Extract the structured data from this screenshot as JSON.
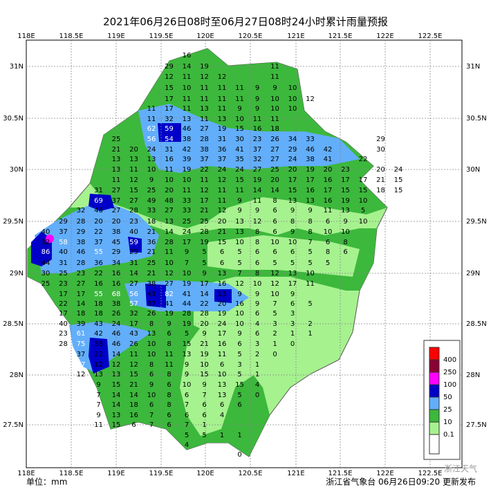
{
  "title": "2021年06月26日08时至06月27日08时24小时累计雨量预报",
  "lon_labels": [
    "118E",
    "118.5E",
    "119E",
    "119.5E",
    "120E",
    "120.5E",
    "121E",
    "121.5E",
    "122E",
    "122.5E"
  ],
  "lat_labels": [
    "31N",
    "30.5N",
    "30N",
    "29.5N",
    "29N",
    "28.5N",
    "28N",
    "27.5N"
  ],
  "legend": [
    "400",
    "250",
    "100",
    "50",
    "25",
    "10",
    "0.1"
  ],
  "unit": "单位：mm",
  "footer": "浙江省气象台 06月26日09:20 更新发布",
  "watermark": "浙江天气",
  "station_rows": [
    [
      16
    ],
    [
      29,
      14,
      19,
      null,
      null,
      null,
      11
    ],
    [
      12,
      11,
      12,
      12,
      null,
      null,
      11
    ],
    [
      15,
      10,
      11,
      11,
      11,
      9,
      9,
      10
    ],
    [
      17,
      11,
      11,
      11,
      11,
      9,
      10,
      10,
      12
    ],
    [
      11,
      17,
      11,
      13,
      11,
      9,
      9,
      10,
      10
    ],
    [
      11,
      32,
      13,
      11,
      13,
      10,
      11,
      11
    ],
    [
      62,
      59,
      46,
      27,
      19,
      15,
      16,
      18
    ],
    [
      25,
      null,
      56,
      54,
      38,
      28,
      31,
      30,
      23,
      26,
      34,
      33,
      null,
      null,
      null,
      29
    ],
    [
      21,
      20,
      24,
      31,
      42,
      38,
      36,
      41,
      37,
      27,
      29,
      46,
      42,
      null,
      null,
      30
    ],
    [
      13,
      13,
      13,
      16,
      39,
      37,
      37,
      35,
      32,
      27,
      24,
      38,
      41,
      null,
      22
    ],
    [
      13,
      11,
      10,
      11,
      19,
      22,
      24,
      24,
      27,
      25,
      20,
      19,
      20,
      23,
      null,
      20,
      24
    ],
    [
      11,
      12,
      9,
      10,
      10,
      11,
      12,
      15,
      19,
      20,
      17,
      17,
      16,
      17,
      17,
      21,
      15
    ],
    [
      31,
      27,
      15,
      25,
      20,
      11,
      12,
      11,
      11,
      14,
      14,
      15,
      16,
      17,
      15,
      15,
      18,
      15
    ],
    [
      69,
      37,
      27,
      49,
      48,
      33,
      17,
      11,
      9,
      11,
      8,
      13,
      13,
      16,
      19,
      10
    ],
    [
      32,
      46,
      27,
      28,
      33,
      27,
      33,
      21,
      12,
      9,
      9,
      6,
      9,
      9,
      11,
      13,
      5
    ],
    [
      29,
      28,
      20,
      20,
      23,
      18,
      13,
      25,
      25,
      20,
      13,
      12,
      6,
      8,
      8,
      6,
      9,
      10
    ],
    [
      40,
      37,
      29,
      22,
      38,
      40,
      21,
      14,
      24,
      28,
      21,
      13,
      8,
      6,
      9,
      8,
      10,
      10
    ],
    [
      32,
      58,
      38,
      37,
      45,
      59,
      36,
      28,
      17,
      19,
      15,
      10,
      8,
      10,
      10,
      7,
      6,
      8
    ],
    [
      86,
      40,
      46,
      55,
      29,
      25,
      21,
      11,
      9,
      5,
      6,
      5,
      6,
      6,
      6,
      5,
      8,
      6
    ],
    [
      44,
      31,
      28,
      36,
      34,
      31,
      25,
      10,
      7,
      5,
      6,
      5,
      6,
      5,
      5,
      5,
      5
    ],
    [
      30,
      25,
      23,
      22,
      16,
      14,
      21,
      12,
      10,
      9,
      13,
      7,
      8,
      12,
      13,
      10
    ],
    [
      25,
      23,
      27,
      16,
      16,
      27,
      38,
      27,
      19,
      17,
      16,
      12,
      10,
      12,
      17,
      11
    ],
    [
      17,
      17,
      55,
      68,
      56,
      43,
      82,
      41,
      14,
      13,
      9,
      9,
      10,
      9
    ],
    [
      22,
      14,
      18,
      38,
      57,
      37,
      41,
      44,
      22,
      20,
      16,
      9,
      7,
      6,
      5
    ],
    [
      17,
      18,
      18,
      26,
      32,
      26,
      19,
      28,
      28,
      19,
      10,
      6,
      5,
      3
    ],
    [
      40,
      39,
      43,
      24,
      17,
      8,
      9,
      19,
      20,
      24,
      10,
      4,
      3,
      3,
      2
    ],
    [
      23,
      61,
      42,
      46,
      43,
      13,
      6,
      5,
      9,
      17,
      9,
      6,
      2,
      1,
      1
    ],
    [
      28,
      75,
      38,
      46,
      26,
      10,
      8,
      15,
      21,
      16,
      6,
      3,
      1,
      0
    ],
    [
      37,
      22,
      14,
      11,
      10,
      11,
      13,
      19,
      11,
      5,
      2,
      0
    ],
    [
      77,
      12,
      12,
      12,
      8,
      11,
      9,
      10,
      6,
      3,
      1
    ],
    [
      12,
      13,
      13,
      15,
      6,
      8,
      9,
      15,
      10,
      5,
      1
    ],
    [
      9,
      15,
      21,
      9,
      6,
      10,
      9,
      13,
      15,
      4
    ],
    [
      7,
      14,
      14,
      10,
      8,
      6,
      7,
      13,
      5,
      0
    ],
    [
      7,
      14,
      18,
      6,
      8,
      7,
      6,
      6,
      6
    ],
    [
      9,
      13,
      16,
      7,
      6,
      6,
      6,
      4
    ],
    [
      11,
      15,
      6,
      7,
      6,
      7,
      1
    ],
    [
      5,
      5,
      1,
      1
    ],
    [
      4
    ],
    [
      0
    ]
  ]
}
